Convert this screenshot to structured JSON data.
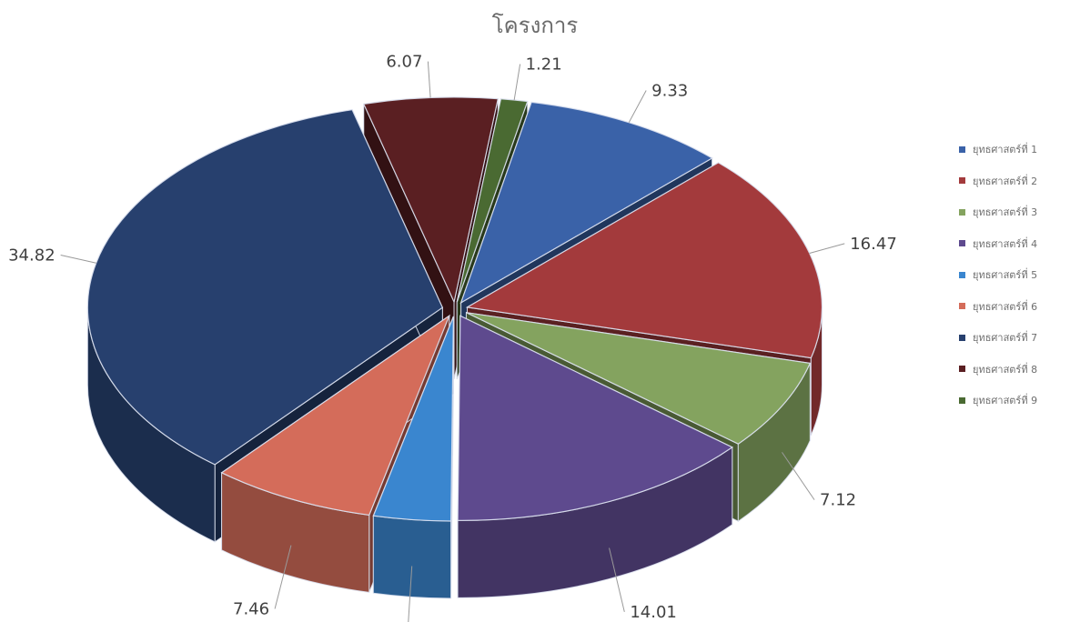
{
  "chart_data": {
    "type": "pie",
    "title": "โครงการ",
    "legend_position": "right",
    "series": [
      {
        "name": "ยุทธศาสตร์ที่ 1",
        "value": 9.33,
        "color": "#3a62a8"
      },
      {
        "name": "ยุทธศาสตร์ที่ 2",
        "value": 16.47,
        "color": "#a33a3c"
      },
      {
        "name": "ยุทธศาสตร์ที่ 3",
        "value": 7.12,
        "color": "#84a35f"
      },
      {
        "name": "ยุทธศาสตร์ที่ 4",
        "value": 14.01,
        "color": "#5e4a8e"
      },
      {
        "name": "ยุทธศาสตร์ที่ 5",
        "value": 3.51,
        "color": "#3a86cf"
      },
      {
        "name": "ยุทธศาสตร์ที่ 6",
        "value": 7.46,
        "color": "#d46c5a"
      },
      {
        "name": "ยุทธศาสตร์ที่ 7",
        "value": 34.82,
        "color": "#27406e"
      },
      {
        "name": "ยุทธศาสตร์ที่ 8",
        "value": 6.07,
        "color": "#5a1f22"
      },
      {
        "name": "ยุทธศาสตร์ที่ 9",
        "value": 1.21,
        "color": "#4a6a32"
      }
    ]
  }
}
